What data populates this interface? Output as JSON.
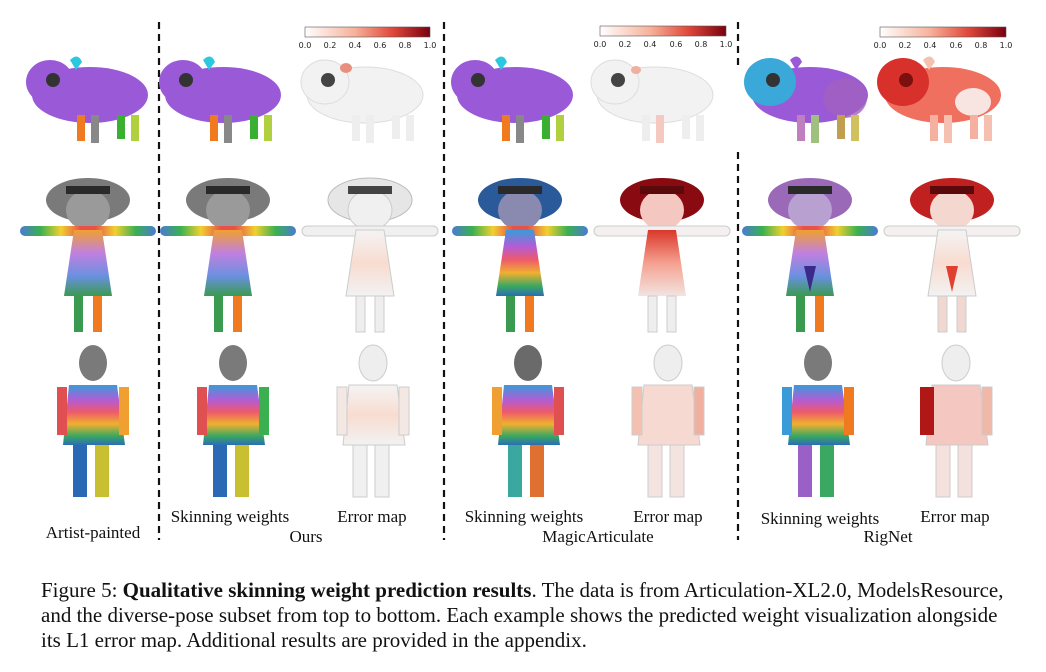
{
  "colorbar": {
    "ticks": [
      "0.0",
      "0.2",
      "0.4",
      "0.6",
      "0.8",
      "1.0"
    ]
  },
  "labels": {
    "artist": "Artist-painted",
    "skin": "Skinning weights",
    "error": "Error map",
    "ours": "Ours",
    "magic": "MagicArticulate",
    "rignet": "RigNet"
  },
  "caption": {
    "prefix": "Figure 5: ",
    "bold": "Qualitative skinning weight prediction results",
    "rest": ". The data is from Articulation-XL2.0, ModelsResource, and the diverse-pose subset from top to bottom. Each example shows the predicted weight visualization alongside its L1 error map. Additional results are provided in the appendix."
  }
}
